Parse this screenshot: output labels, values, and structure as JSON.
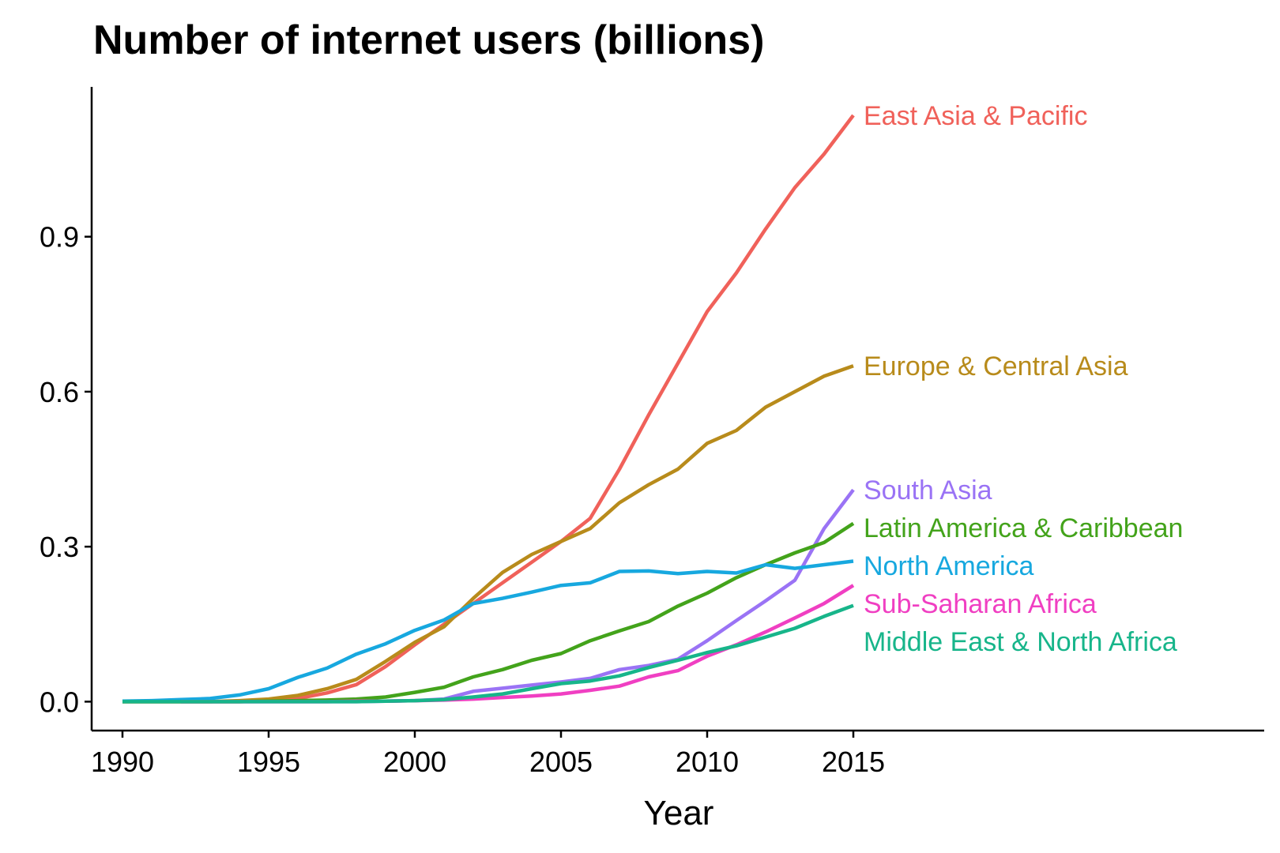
{
  "chart_data": {
    "type": "line",
    "title": "Number of internet users (billions)",
    "xlabel": "Year",
    "ylabel": "",
    "xlim": [
      1990,
      2015
    ],
    "ylim": [
      -0.056,
      1.19
    ],
    "x_ticks": [
      "1990",
      "1995",
      "2000",
      "2005",
      "2010",
      "2015"
    ],
    "y_ticks": [
      "0.0",
      "0.3",
      "0.6",
      "0.9"
    ],
    "grid": false,
    "legend": "direct labels at line ends",
    "x": [
      1990,
      1991,
      1992,
      1993,
      1994,
      1995,
      1996,
      1997,
      1998,
      1999,
      2000,
      2001,
      2002,
      2003,
      2004,
      2005,
      2006,
      2007,
      2008,
      2009,
      2010,
      2011,
      2012,
      2013,
      2014,
      2015
    ],
    "series": [
      {
        "name": "East Asia & Pacific",
        "color": "#F0615A",
        "values": [
          0,
          0,
          0,
          0,
          0,
          0.002,
          0.006,
          0.017,
          0.033,
          0.068,
          0.11,
          0.15,
          0.19,
          0.23,
          0.27,
          0.31,
          0.355,
          0.45,
          0.555,
          0.655,
          0.755,
          0.83,
          0.915,
          0.995,
          1.06,
          1.135
        ]
      },
      {
        "name": "Europe & Central Asia",
        "color": "#B88B1B",
        "values": [
          0,
          0,
          0,
          0,
          0.002,
          0.005,
          0.012,
          0.025,
          0.043,
          0.078,
          0.115,
          0.145,
          0.2,
          0.25,
          0.285,
          0.31,
          0.335,
          0.385,
          0.42,
          0.45,
          0.5,
          0.525,
          0.57,
          0.6,
          0.63,
          0.65
        ]
      },
      {
        "name": "South Asia",
        "color": "#9A73F5",
        "values": [
          null,
          null,
          0,
          0,
          0,
          0,
          0,
          0,
          0,
          0.001,
          0.002,
          0.005,
          0.02,
          0.026,
          0.032,
          0.038,
          0.045,
          0.062,
          0.07,
          0.082,
          0.118,
          0.157,
          0.195,
          0.235,
          0.335,
          0.41
        ]
      },
      {
        "name": "Latin America & Caribbean",
        "color": "#43A31B",
        "values": [
          0,
          0,
          0,
          0,
          0,
          0.001,
          0.002,
          0.003,
          0.005,
          0.009,
          0.018,
          0.028,
          0.048,
          0.062,
          0.08,
          0.093,
          0.118,
          0.137,
          0.155,
          0.185,
          0.21,
          0.24,
          0.265,
          0.288,
          0.308,
          0.345
        ]
      },
      {
        "name": "North America",
        "color": "#17A8DF",
        "values": [
          0.001,
          0.002,
          0.004,
          0.006,
          0.013,
          0.025,
          0.047,
          0.065,
          0.092,
          0.112,
          0.138,
          0.158,
          0.19,
          0.2,
          0.212,
          0.225,
          0.23,
          0.252,
          0.253,
          0.248,
          0.252,
          0.249,
          0.265,
          0.258,
          0.265,
          0.272
        ]
      },
      {
        "name": "Sub-Saharan Africa",
        "color": "#F03FC2",
        "values": [
          null,
          null,
          0,
          0,
          0,
          0,
          0,
          0,
          0.001,
          0.001,
          0.002,
          0.003,
          0.005,
          0.008,
          0.011,
          0.015,
          0.022,
          0.03,
          0.048,
          0.06,
          0.088,
          0.11,
          0.135,
          0.162,
          0.19,
          0.225
        ]
      },
      {
        "name": "Middle East & North Africa",
        "color": "#17B58A",
        "values": [
          0,
          0,
          0,
          0,
          0,
          0,
          0,
          0,
          0,
          0.001,
          0.002,
          0.004,
          0.009,
          0.015,
          0.025,
          0.035,
          0.04,
          0.05,
          0.066,
          0.08,
          0.095,
          0.108,
          0.125,
          0.142,
          0.165,
          0.186
        ]
      }
    ]
  }
}
